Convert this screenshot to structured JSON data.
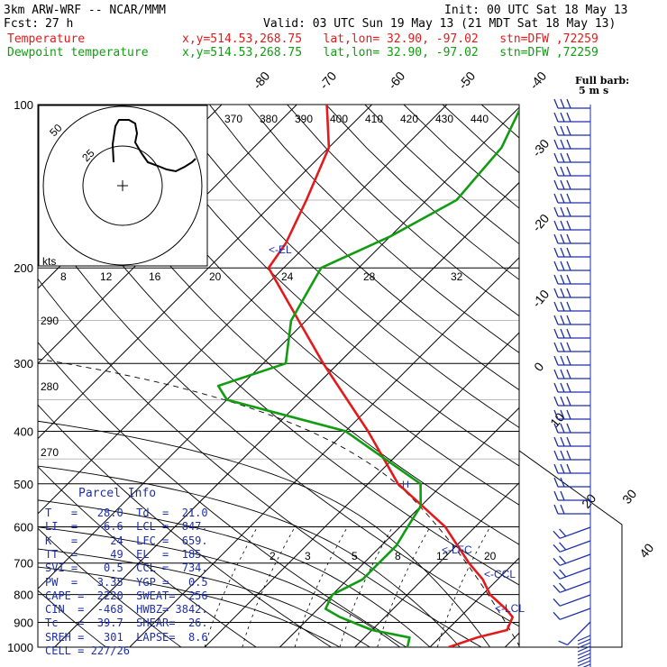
{
  "header": {
    "model": "3km ARW-WRF -- NCAR/MMM",
    "init": "Init: 00 UTC Sat 18 May 13",
    "fcst_label": "Fcst:",
    "fcst_value": "27 h",
    "valid": "Valid: 03 UTC Sun 19 May 13 (21 MDT Sat 18 May 13)",
    "temp_label": "Temperature",
    "dew_label": "Dewpoint temperature",
    "temp_info": "x,y=514.53,268.75   lat,lon= 32.90, -97.02   stn=DFW ,72259",
    "dew_info": "x,y=514.53,268.75   lat,lon= 32.90, -97.02   stn=DFW ,72259",
    "colors": {
      "temperature": "#e31a1c",
      "dewpoint": "#119c11",
      "info": "#1d2fa8"
    }
  },
  "chart_data": {
    "type": "line",
    "title": "",
    "xlabel": "",
    "ylabel": "",
    "y_log_scale": true,
    "pressure_ticks": [
      "100",
      "200",
      "300",
      "400",
      "500",
      "600",
      "700",
      "800",
      "900",
      "1000"
    ],
    "temperature_ticks": [
      "-80",
      "-70",
      "-60",
      "-50",
      "-40",
      "-30",
      "-20",
      "-10",
      "0",
      "10",
      "20",
      "30",
      "40"
    ],
    "theta_labels": [
      "370",
      "380",
      "390",
      "400",
      "410",
      "420",
      "430",
      "440"
    ],
    "mixing_ratio_upper": [
      "8",
      "12",
      "16",
      "20",
      "24",
      "28",
      "32"
    ],
    "mixing_ratio_lower": [
      "2",
      "3",
      "5",
      "8",
      "12",
      "20"
    ],
    "dry_adiabat_labels": [
      "290",
      "280",
      "270"
    ],
    "series": [
      {
        "name": "Temperature",
        "points": [
          [
            1000,
            22.5
          ],
          [
            960,
            25
          ],
          [
            930,
            28
          ],
          [
            880,
            27
          ],
          [
            850,
            25
          ],
          [
            800,
            21
          ],
          [
            750,
            18
          ],
          [
            700,
            14
          ],
          [
            600,
            6
          ],
          [
            500,
            -6
          ],
          [
            400,
            -17
          ],
          [
            300,
            -32
          ],
          [
            250,
            -41
          ],
          [
            200,
            -52
          ],
          [
            180,
            -53
          ],
          [
            150,
            -56
          ],
          [
            120,
            -60
          ],
          [
            100,
            -66
          ]
        ]
      },
      {
        "name": "Dewpoint temperature",
        "points": [
          [
            1000,
            17
          ],
          [
            960,
            16
          ],
          [
            930,
            10
          ],
          [
            880,
            4
          ],
          [
            850,
            1
          ],
          [
            800,
            0
          ],
          [
            750,
            2
          ],
          [
            700,
            2
          ],
          [
            650,
            2
          ],
          [
            600,
            1
          ],
          [
            550,
            0
          ],
          [
            500,
            -3
          ],
          [
            400,
            -20
          ],
          [
            350,
            -40
          ],
          [
            330,
            -43
          ],
          [
            300,
            -37
          ],
          [
            250,
            -42
          ],
          [
            200,
            -45
          ],
          [
            175,
            -40
          ],
          [
            150,
            -36
          ],
          [
            120,
            -37
          ],
          [
            100,
            -40
          ]
        ]
      }
    ],
    "annotations": {
      "el": "<-EL",
      "lfc": "<-LFC",
      "ccl": "<-CCL",
      "lcl": "<-LCL",
      "h": "H"
    }
  },
  "barb_box": {
    "title": "Full barb:",
    "unit": "5 m s",
    "speed_labels": [
      "50",
      "25"
    ],
    "kts_label": "kts"
  },
  "parcel_info": {
    "title": "Parcel Info",
    "rows": [
      "T   =   28.0  Td  =  21.0",
      "LI  =   -6.6  LCL =  847.",
      "K   =     24  LFC =  659.",
      "TT  =     49  EL  =  185.",
      "SVI =    0.5  CCL =  734.",
      "PW  =   3.35  YGP =   0.5",
      "CAPE =  2220  SWEAT=  256",
      "CIN  =  -468  HWBZ= 3842.",
      "Tc   =  39.7  SHEAR=  26.",
      "SREH =   301  LAPSE=  8.6",
      "CELL = 227/26"
    ]
  }
}
